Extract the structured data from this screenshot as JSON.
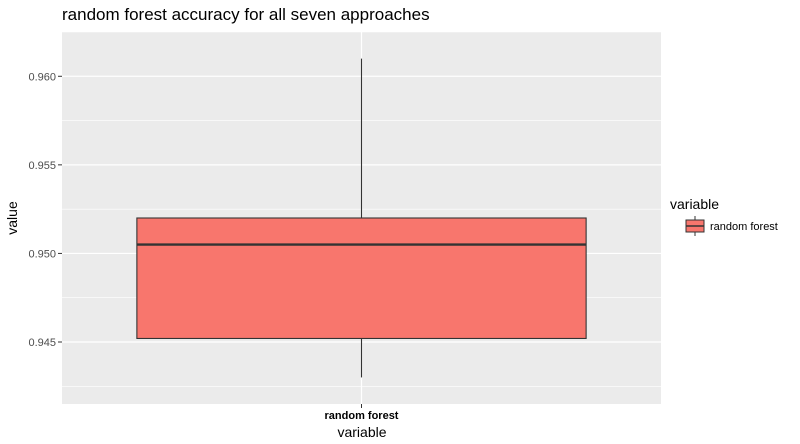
{
  "chart_data": {
    "type": "box",
    "title": "random forest accuracy for all seven approaches",
    "xlabel": "variable",
    "ylabel": "value",
    "categories": [
      "random forest"
    ],
    "series": [
      {
        "name": "random forest",
        "min": 0.943,
        "q1": 0.9452,
        "median": 0.9505,
        "q3": 0.952,
        "max": 0.961
      }
    ],
    "ylim": [
      0.9415,
      0.9625
    ],
    "yticks": [
      0.945,
      0.95,
      0.955,
      0.96
    ],
    "ytick_labels": [
      "0.945",
      "0.950",
      "0.955",
      "0.960"
    ],
    "grid": true,
    "legend": {
      "title": "variable",
      "position": "right",
      "entries": [
        "random forest"
      ]
    },
    "colors": {
      "fill": "#F8766D",
      "stroke": "#333333",
      "panel": "#EBEBEB",
      "grid": "#FFFFFF"
    }
  }
}
